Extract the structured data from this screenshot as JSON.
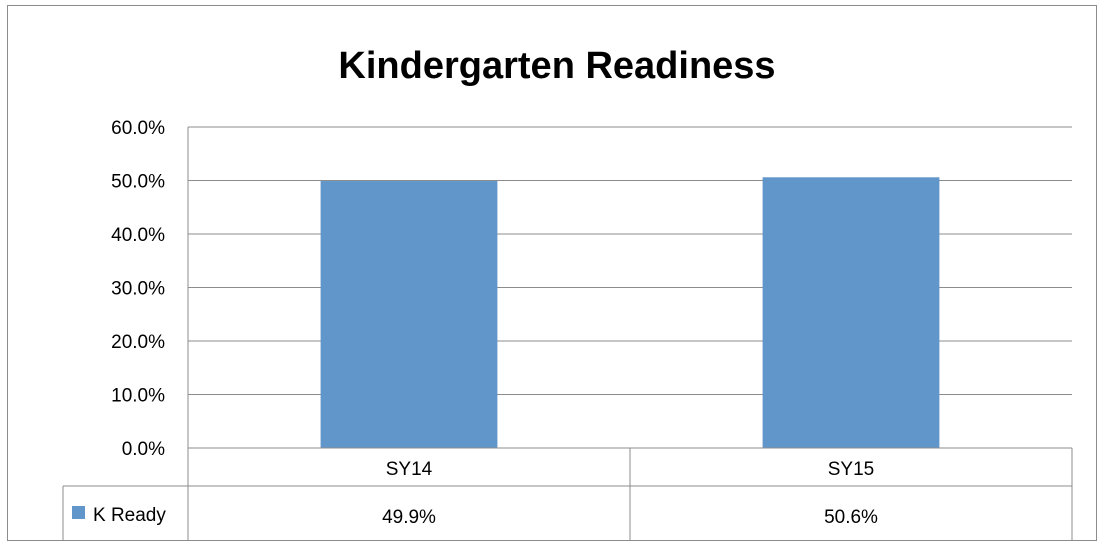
{
  "chart_data": {
    "type": "bar",
    "title": "Kindergarten Readiness",
    "categories": [
      "SY14",
      "SY15"
    ],
    "series": [
      {
        "name": "K Ready",
        "values": [
          49.9,
          50.6
        ],
        "color": "#6096ca"
      }
    ],
    "data_labels": [
      "49.9%",
      "50.6%"
    ],
    "ylim": [
      0,
      60
    ],
    "yticks": [
      0,
      10,
      20,
      30,
      40,
      50,
      60
    ],
    "ytick_labels": [
      "0.0%",
      "10.0%",
      "20.0%",
      "30.0%",
      "40.0%",
      "50.0%",
      "60.0%"
    ],
    "grid": true,
    "legend": "data-table-left",
    "data_table": true
  }
}
